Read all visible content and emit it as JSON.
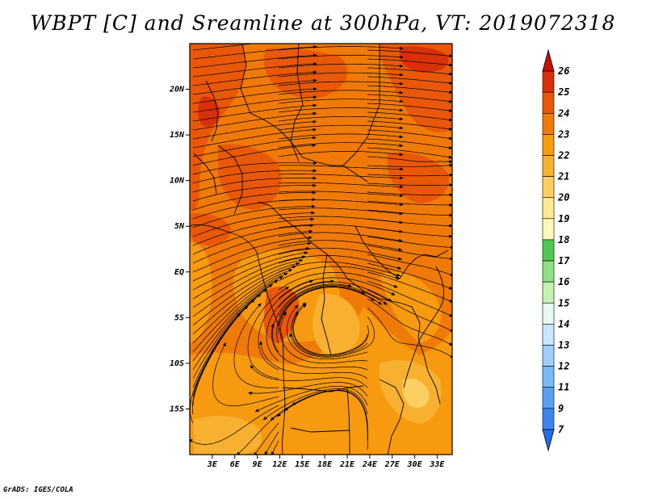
{
  "title": "WBPT [C] and Sreamline at 300hPa, VT: 2019072318",
  "credit": "GrADS: IGES/COLA",
  "map": {
    "lon_range": [
      0,
      35
    ],
    "lat_range": [
      -20,
      25
    ],
    "lat_labels": [
      {
        "text": "20N",
        "lat": 20
      },
      {
        "text": "15N",
        "lat": 15
      },
      {
        "text": "10N",
        "lat": 10
      },
      {
        "text": "5N",
        "lat": 5
      },
      {
        "text": "EQ",
        "lat": 0
      },
      {
        "text": "5S",
        "lat": -5
      },
      {
        "text": "10S",
        "lat": -10
      },
      {
        "text": "15S",
        "lat": -15
      }
    ],
    "lon_labels": [
      {
        "text": "3E",
        "lon": 3
      },
      {
        "text": "6E",
        "lon": 6
      },
      {
        "text": "9E",
        "lon": 9
      },
      {
        "text": "12E",
        "lon": 12
      },
      {
        "text": "15E",
        "lon": 15
      },
      {
        "text": "18E",
        "lon": 18
      },
      {
        "text": "21E",
        "lon": 21
      },
      {
        "text": "24E",
        "lon": 24
      },
      {
        "text": "27E",
        "lon": 27
      },
      {
        "text": "30E",
        "lon": 30
      },
      {
        "text": "33E",
        "lon": 33
      }
    ]
  },
  "colorbar": {
    "levels": [
      "7",
      "9",
      "11",
      "12",
      "13",
      "14",
      "15",
      "16",
      "17",
      "18",
      "19",
      "20",
      "21",
      "22",
      "23",
      "24",
      "25",
      "26"
    ],
    "colors": [
      "#1e6ee6",
      "#3a86ee",
      "#5aa0f2",
      "#7cb8f6",
      "#a0d0fa",
      "#c8e6fc",
      "#e8f8f4",
      "#c4f0b0",
      "#8ee080",
      "#50c850",
      "#fff8b8",
      "#fde890",
      "#fcd060",
      "#f8b030",
      "#f89a10",
      "#f07a08",
      "#e85808",
      "#d83008",
      "#c01008"
    ],
    "under_color": "#1e6ee6",
    "over_color": "#c01008"
  },
  "field": {
    "colors": {
      "t20": "#fcd060",
      "t21": "#f8b030",
      "t22": "#f89a10",
      "t23": "#f07a08",
      "t24": "#e85808",
      "t25": "#d83008",
      "t26": "#c01008"
    }
  }
}
